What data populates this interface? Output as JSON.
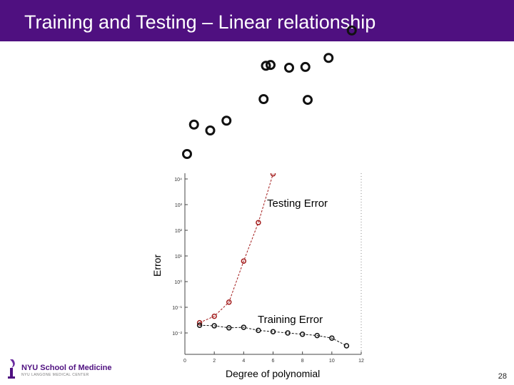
{
  "slide": {
    "title": "Training and Testing – Linear relationship",
    "page_number": "28"
  },
  "logo": {
    "name": "NYU School of Medicine",
    "subtitle": "NYU LANGONE MEDICAL CENTER"
  },
  "chart_data": [
    {
      "type": "scatter",
      "title": "",
      "xlabel": "",
      "ylabel": "",
      "points": [
        {
          "x": 0.0,
          "y": 0.0
        },
        {
          "x": 0.3,
          "y": 0.75
        },
        {
          "x": 1.0,
          "y": 0.6
        },
        {
          "x": 1.7,
          "y": 0.85
        },
        {
          "x": 3.3,
          "y": 1.4
        },
        {
          "x": 3.4,
          "y": 2.25
        },
        {
          "x": 3.6,
          "y": 2.27
        },
        {
          "x": 4.4,
          "y": 2.2
        },
        {
          "x": 5.1,
          "y": 2.22
        },
        {
          "x": 5.2,
          "y": 1.38
        },
        {
          "x": 6.1,
          "y": 2.45
        },
        {
          "x": 7.1,
          "y": 3.15
        }
      ],
      "color": "#111111"
    },
    {
      "type": "line",
      "xlabel": "Degree of polynomial",
      "ylabel": "Error",
      "yscale": "log",
      "xlim": [
        0,
        12
      ],
      "ylim_exp": [
        -2.5,
        4.2
      ],
      "x_ticks": [
        0,
        2,
        4,
        6,
        8,
        10,
        12
      ],
      "y_ticks": [
        {
          "exp": 4,
          "label": "10⁴"
        },
        {
          "exp": 3,
          "label": "10³"
        },
        {
          "exp": 2,
          "label": "10²"
        },
        {
          "exp": 1,
          "label": "10¹"
        },
        {
          "exp": 0,
          "label": "10⁰"
        },
        {
          "exp": -1,
          "label": "10⁻¹"
        },
        {
          "exp": -2,
          "label": "10⁻²"
        }
      ],
      "series": [
        {
          "name": "Testing Error",
          "color": "#a31c1c",
          "x": [
            1,
            2,
            3,
            4,
            5,
            6
          ],
          "y_exp": [
            -1.6,
            -1.35,
            -0.8,
            0.8,
            2.3,
            4.2
          ]
        },
        {
          "name": "Training Error",
          "color": "#111111",
          "x": [
            1,
            2,
            3,
            4,
            5,
            6,
            7,
            8,
            9,
            10,
            11
          ],
          "y_exp": [
            -1.7,
            -1.72,
            -1.8,
            -1.78,
            -1.9,
            -1.95,
            -2.0,
            -2.05,
            -2.1,
            -2.2,
            -2.5
          ]
        }
      ]
    }
  ]
}
